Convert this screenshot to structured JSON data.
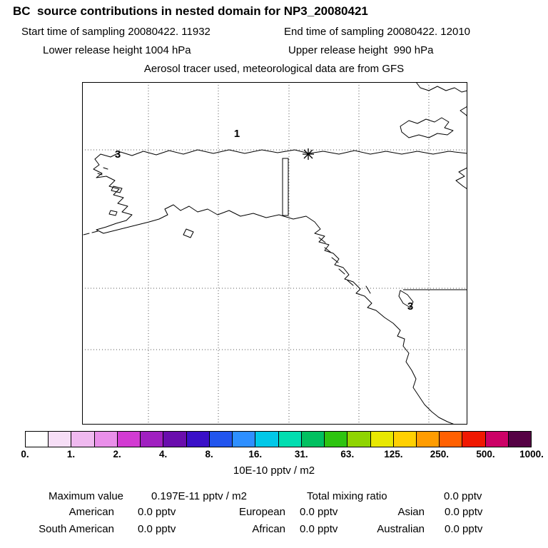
{
  "header": {
    "title": "BC  source contributions in nested domain for NP3_20080421",
    "line2_left": "Start time of sampling 20080422. 11932",
    "line2_right": "End time of sampling 20080422. 12010",
    "line3_left": "Lower release height 1004 hPa",
    "line3_right": "Upper release height  990 hPa",
    "line4": "Aerosol tracer used, meteorological data are from GFS"
  },
  "map": {
    "labels": [
      {
        "text": "1"
      },
      {
        "text": "3"
      },
      {
        "text": "3"
      }
    ],
    "marker": "asterisk-release-location"
  },
  "colorbar": {
    "cells": [
      "#ffffff",
      "#f6def6",
      "#efb9ef",
      "#e98fe9",
      "#d23bd2",
      "#a020c0",
      "#6a0dad",
      "#3a10c8",
      "#2255ee",
      "#2e8fff",
      "#00c8e8",
      "#00ddb0",
      "#00c060",
      "#2ec410",
      "#8fd400",
      "#e8e800",
      "#ffd000",
      "#ff9c00",
      "#ff6000",
      "#f01800",
      "#cc0066",
      "#550044"
    ],
    "tick_labels": [
      "0.",
      "1.",
      "2.",
      "4.",
      "8.",
      "16.",
      "31.",
      "63.",
      "125.",
      "250.",
      "500.",
      "1000."
    ],
    "units": "10E-10 pptv / m2"
  },
  "stats": {
    "maximum_label": "Maximum value",
    "maximum_value": "0.197E-11 pptv / m2",
    "total_label": "Total mixing ratio",
    "total_value": "0.0 pptv",
    "contributions": [
      {
        "label": "American",
        "value": "0.0 pptv"
      },
      {
        "label": "European",
        "value": "0.0 pptv"
      },
      {
        "label": "Asian",
        "value": "0.0 pptv"
      },
      {
        "label": "South American",
        "value": "0.0 pptv"
      },
      {
        "label": "African",
        "value": "0.0 pptv"
      },
      {
        "label": "Australian",
        "value": "0.0 pptv"
      }
    ]
  },
  "chart_data": {
    "type": "heatmap",
    "title": "BC source contributions in nested domain for NP3_20080421",
    "subtitle": [
      "Start time of sampling 20080422. 11932",
      "End time of sampling 20080422. 12010",
      "Lower release height 1004 hPa",
      "Upper release height 990 hPa",
      "Aerosol tracer used, meteorological data are from GFS"
    ],
    "colorbar_levels": [
      0,
      1,
      2,
      4,
      8,
      16,
      31,
      63,
      125,
      250,
      500,
      1000
    ],
    "colorbar_units": "10E-10 pptv / m2",
    "maximum_value": "0.197E-11 pptv / m2",
    "total_mixing_ratio": "0.0 pptv",
    "contributions_pptv": {
      "American": 0.0,
      "European": 0.0,
      "Asian": 0.0,
      "South American": 0.0,
      "African": 0.0,
      "Australian": 0.0
    },
    "map_annotations": [
      "1",
      "3",
      "3",
      "asterisk marker at release point"
    ],
    "notes_visible": "no colored contribution cells shown on map (field below lowest level)"
  }
}
